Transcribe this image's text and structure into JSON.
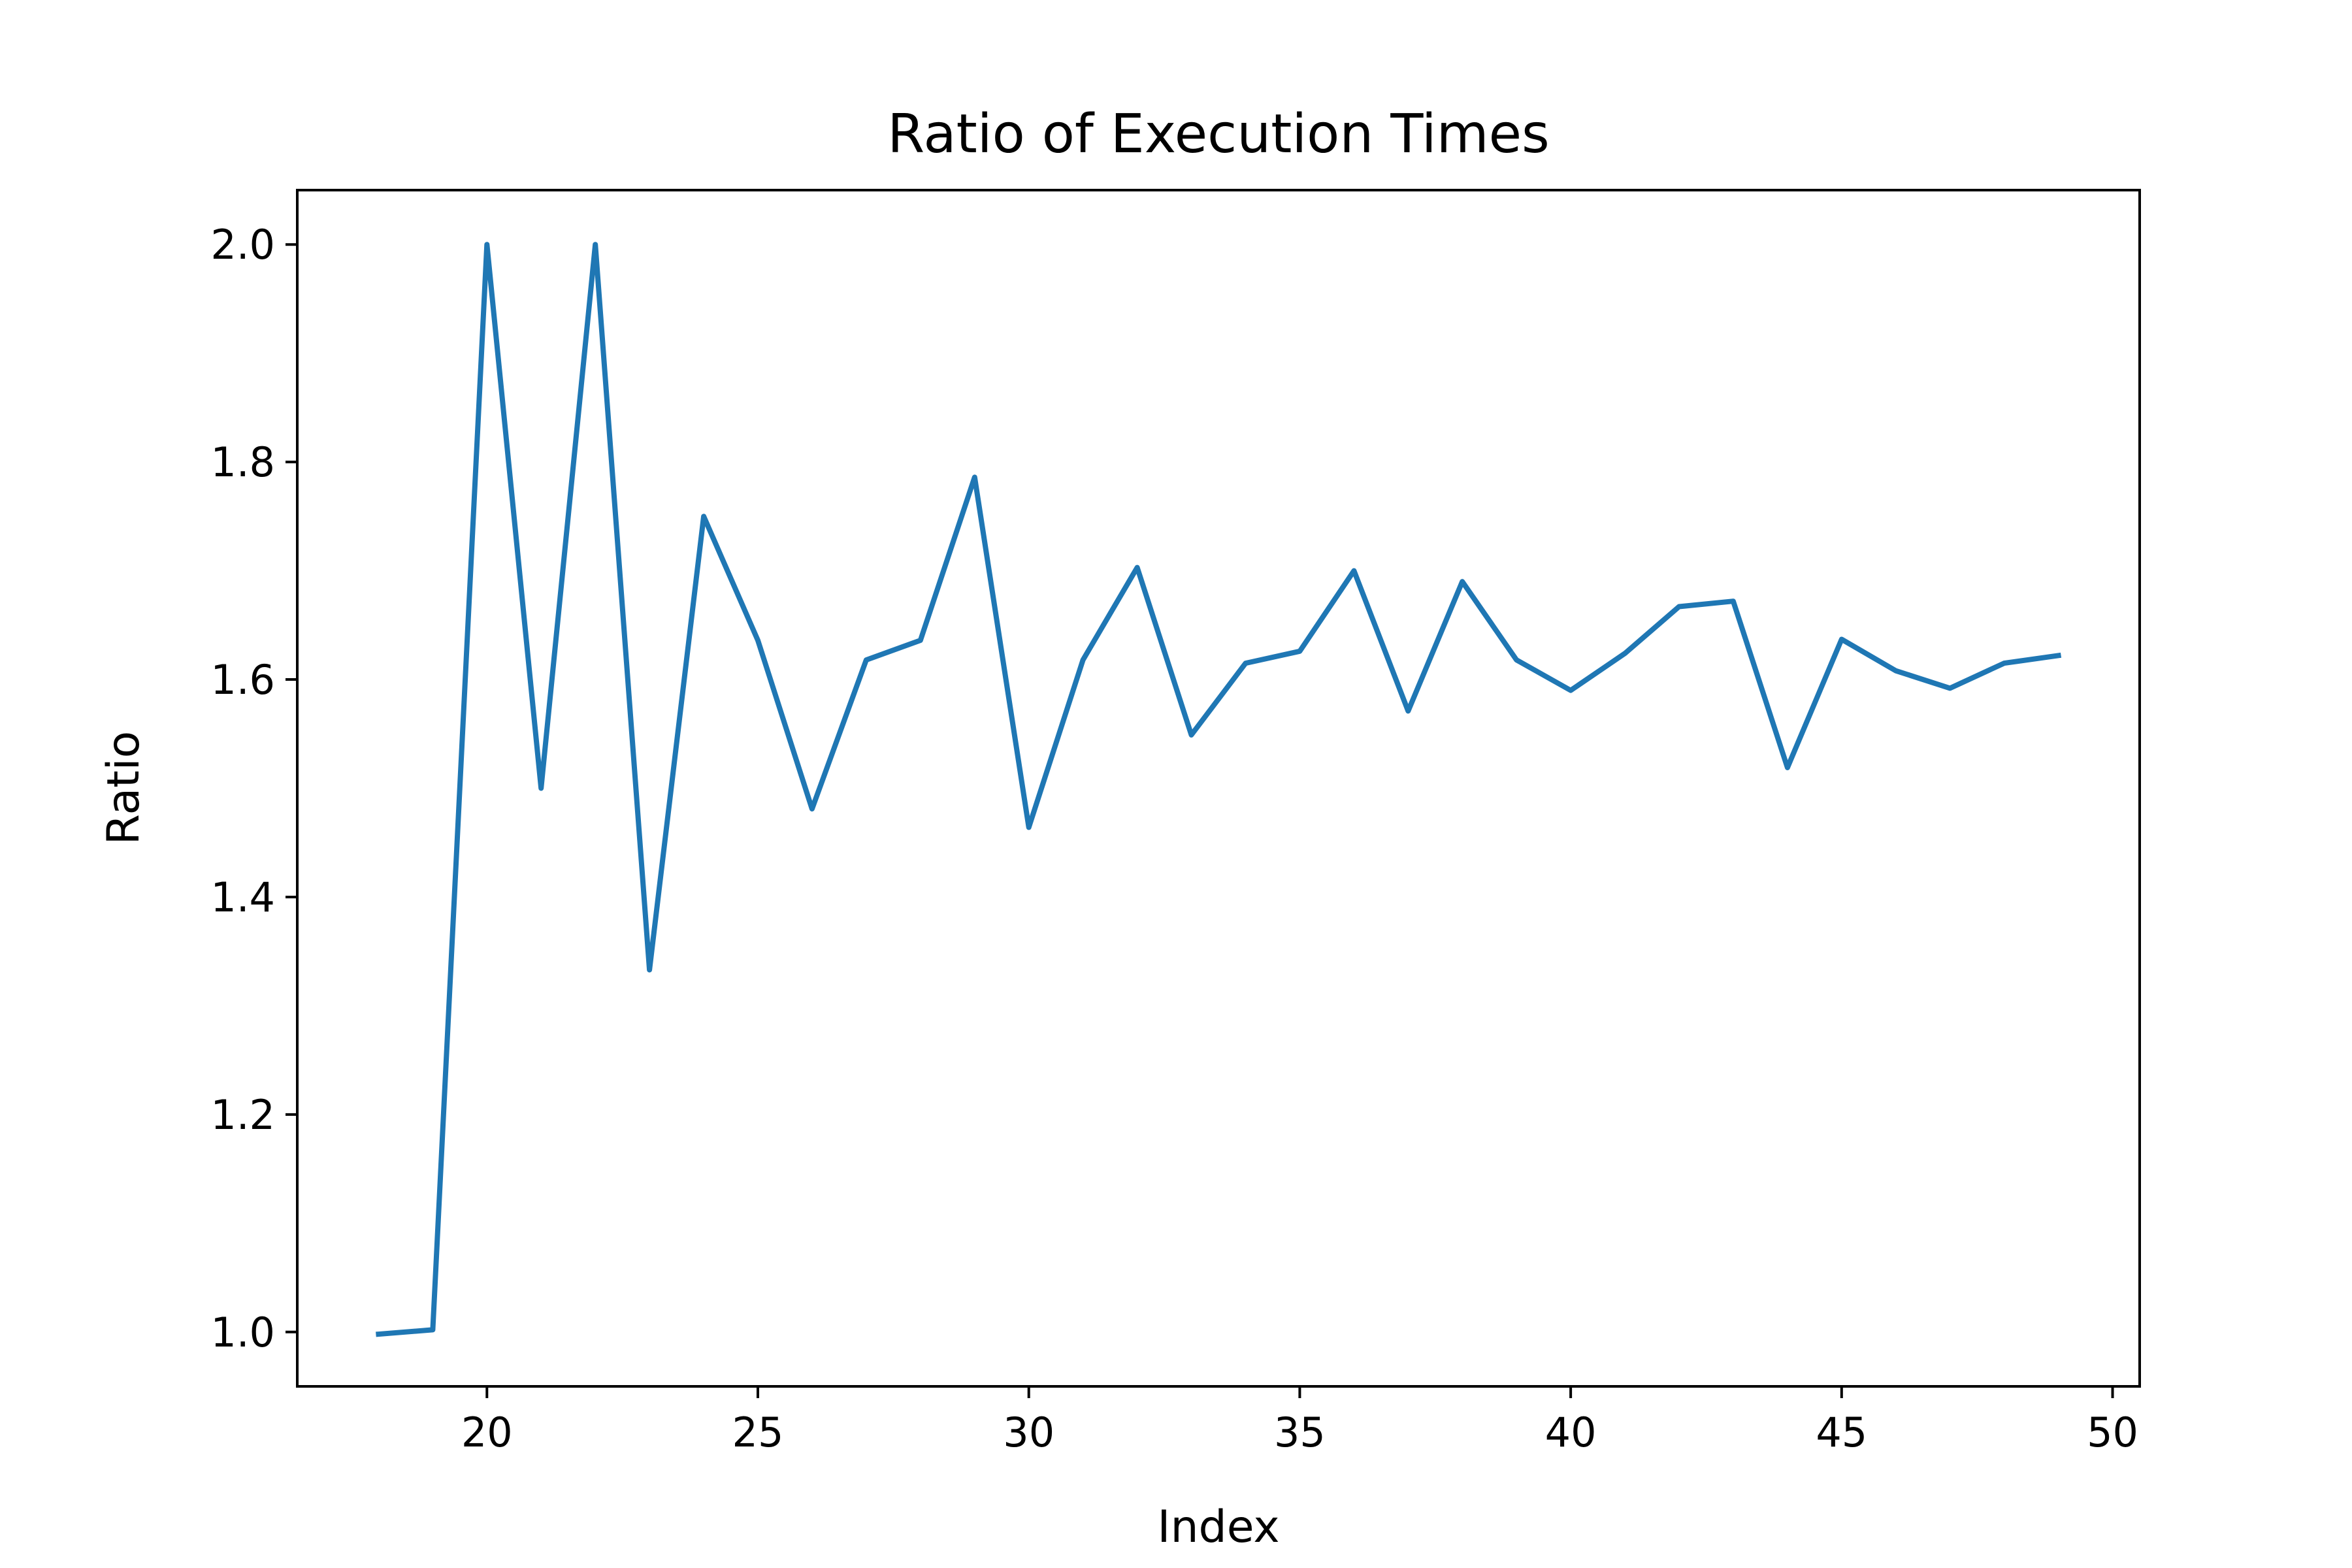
{
  "chart_data": {
    "type": "line",
    "title": "Ratio of Execution Times",
    "xlabel": "Index",
    "ylabel": "Ratio",
    "xlim": [
      16.5,
      50.5
    ],
    "ylim": [
      0.95,
      2.05
    ],
    "xticks": [
      20,
      25,
      30,
      35,
      40,
      45,
      50
    ],
    "yticks": [
      1.0,
      1.2,
      1.4,
      1.6,
      1.8,
      2.0
    ],
    "grid": false,
    "line_color": "#1f77b4",
    "x": [
      18,
      19,
      20,
      21,
      22,
      23,
      24,
      25,
      26,
      27,
      28,
      29,
      30,
      31,
      32,
      33,
      34,
      35,
      36,
      37,
      38,
      39,
      40,
      41,
      42,
      43,
      44,
      45,
      46,
      47,
      48,
      49
    ],
    "y": [
      0.998,
      1.002,
      2.0,
      1.5,
      2.0,
      1.333,
      1.75,
      1.636,
      1.481,
      1.618,
      1.636,
      1.786,
      1.464,
      1.618,
      1.703,
      1.549,
      1.615,
      1.626,
      1.7,
      1.571,
      1.69,
      1.618,
      1.59,
      1.624,
      1.667,
      1.672,
      1.519,
      1.637,
      1.608,
      1.592,
      1.615,
      1.622
    ]
  }
}
